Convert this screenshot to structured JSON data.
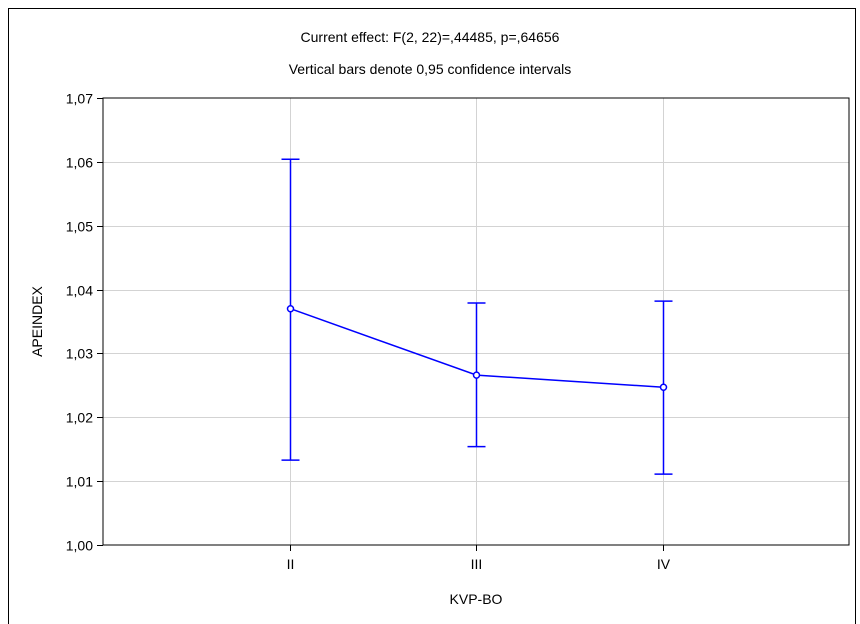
{
  "chart_data": {
    "type": "line",
    "title": "Current effect: F(2, 22)=,44485, p=,64656",
    "subtitle": "Vertical bars denote 0,95 confidence intervals",
    "xlabel": "KVP-BO",
    "ylabel": "APEINDEX",
    "categories": [
      "II",
      "III",
      "IV"
    ],
    "ylim": [
      1.0,
      1.07
    ],
    "yticks": [
      1.0,
      1.01,
      1.02,
      1.03,
      1.04,
      1.05,
      1.06,
      1.07
    ],
    "ytick_labels": [
      "1,00",
      "1,01",
      "1,02",
      "1,03",
      "1,04",
      "1,05",
      "1,06",
      "1,07"
    ],
    "grid": true,
    "series": [
      {
        "values": [
          1.037,
          1.0266,
          1.0247
        ],
        "ci_lower": [
          1.0133,
          1.0154,
          1.0111
        ],
        "ci_upper": [
          1.0604,
          1.0379,
          1.0382
        ]
      }
    ],
    "colors": {
      "series": "#0000ff",
      "grid": "#d3d3d3",
      "axes": "#000000"
    }
  }
}
